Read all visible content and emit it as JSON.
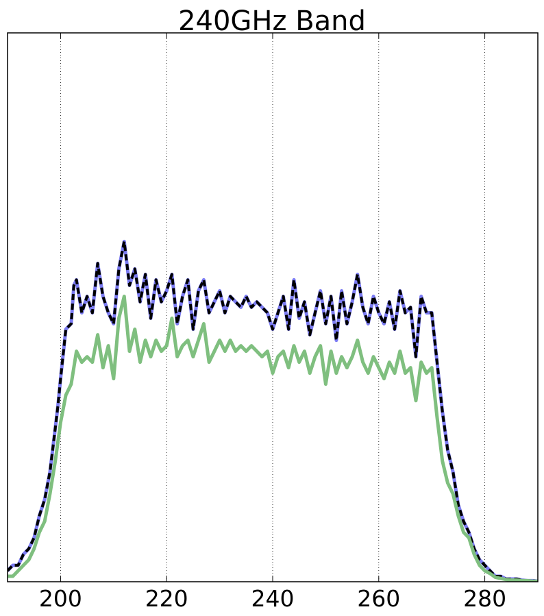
{
  "chart_data": {
    "type": "line",
    "title": "240GHz Band",
    "xlabel": "",
    "ylabel": "",
    "xlim": [
      190,
      290
    ],
    "ylim": [
      0,
      1.0
    ],
    "x_ticks": [
      200,
      220,
      240,
      260,
      280
    ],
    "x_tick_labels": [
      "200",
      "220",
      "240",
      "260",
      "280"
    ],
    "grid": "vertical dotted",
    "legend": "none",
    "series": [
      {
        "color": "#7b7bf2",
        "style": "solid",
        "points": [
          [
            190,
            0.02
          ],
          [
            191,
            0.03
          ],
          [
            192,
            0.03
          ],
          [
            193,
            0.05
          ],
          [
            194,
            0.06
          ],
          [
            195,
            0.08
          ],
          [
            196,
            0.12
          ],
          [
            197,
            0.15
          ],
          [
            198,
            0.2
          ],
          [
            199,
            0.28
          ],
          [
            199.5,
            0.32
          ],
          [
            200,
            0.37
          ],
          [
            201,
            0.46
          ],
          [
            202,
            0.47
          ],
          [
            202.5,
            0.54
          ],
          [
            203,
            0.55
          ],
          [
            204,
            0.49
          ],
          [
            205,
            0.52
          ],
          [
            206,
            0.49
          ],
          [
            207,
            0.58
          ],
          [
            208,
            0.52
          ],
          [
            209,
            0.49
          ],
          [
            210,
            0.47
          ],
          [
            211,
            0.57
          ],
          [
            212,
            0.62
          ],
          [
            213,
            0.54
          ],
          [
            214,
            0.57
          ],
          [
            215,
            0.51
          ],
          [
            216,
            0.56
          ],
          [
            217,
            0.48
          ],
          [
            218,
            0.55
          ],
          [
            219,
            0.51
          ],
          [
            220,
            0.53
          ],
          [
            221,
            0.56
          ],
          [
            222,
            0.47
          ],
          [
            223,
            0.52
          ],
          [
            224,
            0.55
          ],
          [
            225,
            0.46
          ],
          [
            226,
            0.53
          ],
          [
            227,
            0.55
          ],
          [
            228,
            0.49
          ],
          [
            229,
            0.51
          ],
          [
            230,
            0.53
          ],
          [
            231,
            0.49
          ],
          [
            232,
            0.52
          ],
          [
            233,
            0.51
          ],
          [
            234,
            0.5
          ],
          [
            235,
            0.52
          ],
          [
            236,
            0.5
          ],
          [
            237,
            0.51
          ],
          [
            238,
            0.5
          ],
          [
            239,
            0.49
          ],
          [
            240,
            0.46
          ],
          [
            241,
            0.49
          ],
          [
            242,
            0.52
          ],
          [
            243,
            0.46
          ],
          [
            244,
            0.55
          ],
          [
            245,
            0.48
          ],
          [
            246,
            0.51
          ],
          [
            247,
            0.45
          ],
          [
            248,
            0.49
          ],
          [
            249,
            0.53
          ],
          [
            250,
            0.47
          ],
          [
            251,
            0.52
          ],
          [
            252,
            0.44
          ],
          [
            253,
            0.53
          ],
          [
            254,
            0.47
          ],
          [
            255,
            0.51
          ],
          [
            256,
            0.56
          ],
          [
            257,
            0.5
          ],
          [
            258,
            0.47
          ],
          [
            259,
            0.52
          ],
          [
            260,
            0.49
          ],
          [
            261,
            0.47
          ],
          [
            262,
            0.51
          ],
          [
            263,
            0.46
          ],
          [
            264,
            0.53
          ],
          [
            265,
            0.49
          ],
          [
            266,
            0.5
          ],
          [
            267,
            0.41
          ],
          [
            268,
            0.52
          ],
          [
            269,
            0.49
          ],
          [
            270,
            0.49
          ],
          [
            271,
            0.4
          ],
          [
            272,
            0.31
          ],
          [
            273,
            0.24
          ],
          [
            274,
            0.2
          ],
          [
            275,
            0.14
          ],
          [
            276,
            0.11
          ],
          [
            277,
            0.09
          ],
          [
            278,
            0.06
          ],
          [
            279,
            0.04
          ],
          [
            280,
            0.03
          ],
          [
            281,
            0.02
          ],
          [
            282,
            0.01
          ],
          [
            283,
            0.01
          ],
          [
            284,
            0.005
          ],
          [
            285,
            0.005
          ],
          [
            286,
            0.005
          ],
          [
            287,
            0.003
          ],
          [
            288,
            0.002
          ],
          [
            289,
            0.002
          ],
          [
            290,
            0.001
          ]
        ]
      },
      {
        "color": "#000000",
        "style": "dashed",
        "points": [
          [
            190,
            0.02
          ],
          [
            191,
            0.03
          ],
          [
            192,
            0.03
          ],
          [
            193,
            0.05
          ],
          [
            194,
            0.06
          ],
          [
            195,
            0.08
          ],
          [
            196,
            0.12
          ],
          [
            197,
            0.15
          ],
          [
            198,
            0.2
          ],
          [
            199,
            0.28
          ],
          [
            199.5,
            0.32
          ],
          [
            200,
            0.37
          ],
          [
            201,
            0.46
          ],
          [
            202,
            0.47
          ],
          [
            202.5,
            0.54
          ],
          [
            203,
            0.55
          ],
          [
            204,
            0.49
          ],
          [
            205,
            0.52
          ],
          [
            206,
            0.49
          ],
          [
            207,
            0.58
          ],
          [
            208,
            0.52
          ],
          [
            209,
            0.49
          ],
          [
            210,
            0.47
          ],
          [
            211,
            0.57
          ],
          [
            212,
            0.62
          ],
          [
            213,
            0.54
          ],
          [
            214,
            0.57
          ],
          [
            215,
            0.51
          ],
          [
            216,
            0.56
          ],
          [
            217,
            0.48
          ],
          [
            218,
            0.55
          ],
          [
            219,
            0.51
          ],
          [
            220,
            0.53
          ],
          [
            221,
            0.56
          ],
          [
            222,
            0.47
          ],
          [
            223,
            0.52
          ],
          [
            224,
            0.55
          ],
          [
            225,
            0.46
          ],
          [
            226,
            0.53
          ],
          [
            227,
            0.55
          ],
          [
            228,
            0.49
          ],
          [
            229,
            0.51
          ],
          [
            230,
            0.53
          ],
          [
            231,
            0.49
          ],
          [
            232,
            0.52
          ],
          [
            233,
            0.51
          ],
          [
            234,
            0.5
          ],
          [
            235,
            0.52
          ],
          [
            236,
            0.5
          ],
          [
            237,
            0.51
          ],
          [
            238,
            0.5
          ],
          [
            239,
            0.49
          ],
          [
            240,
            0.46
          ],
          [
            241,
            0.49
          ],
          [
            242,
            0.52
          ],
          [
            243,
            0.46
          ],
          [
            244,
            0.55
          ],
          [
            245,
            0.48
          ],
          [
            246,
            0.51
          ],
          [
            247,
            0.45
          ],
          [
            248,
            0.49
          ],
          [
            249,
            0.53
          ],
          [
            250,
            0.47
          ],
          [
            251,
            0.52
          ],
          [
            252,
            0.44
          ],
          [
            253,
            0.53
          ],
          [
            254,
            0.47
          ],
          [
            255,
            0.51
          ],
          [
            256,
            0.56
          ],
          [
            257,
            0.5
          ],
          [
            258,
            0.47
          ],
          [
            259,
            0.52
          ],
          [
            260,
            0.49
          ],
          [
            261,
            0.47
          ],
          [
            262,
            0.51
          ],
          [
            263,
            0.46
          ],
          [
            264,
            0.53
          ],
          [
            265,
            0.49
          ],
          [
            266,
            0.5
          ],
          [
            267,
            0.41
          ],
          [
            268,
            0.52
          ],
          [
            269,
            0.49
          ],
          [
            270,
            0.49
          ],
          [
            271,
            0.4
          ],
          [
            272,
            0.31
          ],
          [
            273,
            0.24
          ],
          [
            274,
            0.2
          ],
          [
            275,
            0.14
          ],
          [
            276,
            0.11
          ],
          [
            277,
            0.09
          ],
          [
            278,
            0.06
          ],
          [
            279,
            0.04
          ],
          [
            280,
            0.03
          ],
          [
            281,
            0.02
          ],
          [
            282,
            0.01
          ],
          [
            283,
            0.01
          ],
          [
            284,
            0.005
          ],
          [
            285,
            0.005
          ],
          [
            286,
            0.005
          ],
          [
            287,
            0.003
          ],
          [
            288,
            0.002
          ],
          [
            289,
            0.002
          ],
          [
            290,
            0.001
          ]
        ]
      },
      {
        "color": "#7fbf7f",
        "style": "solid",
        "points": [
          [
            190,
            0.01
          ],
          [
            191,
            0.01
          ],
          [
            192,
            0.02
          ],
          [
            193,
            0.03
          ],
          [
            194,
            0.04
          ],
          [
            195,
            0.06
          ],
          [
            196,
            0.09
          ],
          [
            197,
            0.11
          ],
          [
            198,
            0.16
          ],
          [
            199,
            0.22
          ],
          [
            200,
            0.29
          ],
          [
            201,
            0.34
          ],
          [
            202,
            0.36
          ],
          [
            203,
            0.42
          ],
          [
            204,
            0.4
          ],
          [
            205,
            0.41
          ],
          [
            206,
            0.4
          ],
          [
            207,
            0.45
          ],
          [
            208,
            0.39
          ],
          [
            209,
            0.43
          ],
          [
            210,
            0.37
          ],
          [
            211,
            0.48
          ],
          [
            212,
            0.52
          ],
          [
            213,
            0.42
          ],
          [
            214,
            0.46
          ],
          [
            215,
            0.4
          ],
          [
            216,
            0.44
          ],
          [
            217,
            0.41
          ],
          [
            218,
            0.44
          ],
          [
            219,
            0.42
          ],
          [
            220,
            0.43
          ],
          [
            221,
            0.48
          ],
          [
            222,
            0.41
          ],
          [
            223,
            0.43
          ],
          [
            224,
            0.44
          ],
          [
            225,
            0.41
          ],
          [
            226,
            0.44
          ],
          [
            227,
            0.47
          ],
          [
            228,
            0.4
          ],
          [
            229,
            0.42
          ],
          [
            230,
            0.44
          ],
          [
            231,
            0.42
          ],
          [
            232,
            0.44
          ],
          [
            233,
            0.42
          ],
          [
            234,
            0.43
          ],
          [
            235,
            0.42
          ],
          [
            236,
            0.43
          ],
          [
            237,
            0.42
          ],
          [
            238,
            0.41
          ],
          [
            239,
            0.42
          ],
          [
            240,
            0.38
          ],
          [
            241,
            0.41
          ],
          [
            242,
            0.42
          ],
          [
            243,
            0.39
          ],
          [
            244,
            0.43
          ],
          [
            245,
            0.4
          ],
          [
            246,
            0.42
          ],
          [
            247,
            0.38
          ],
          [
            248,
            0.41
          ],
          [
            249,
            0.43
          ],
          [
            250,
            0.36
          ],
          [
            251,
            0.42
          ],
          [
            252,
            0.38
          ],
          [
            253,
            0.41
          ],
          [
            254,
            0.39
          ],
          [
            255,
            0.41
          ],
          [
            256,
            0.44
          ],
          [
            257,
            0.4
          ],
          [
            258,
            0.38
          ],
          [
            259,
            0.41
          ],
          [
            260,
            0.39
          ],
          [
            261,
            0.37
          ],
          [
            262,
            0.4
          ],
          [
            263,
            0.38
          ],
          [
            264,
            0.42
          ],
          [
            265,
            0.38
          ],
          [
            266,
            0.39
          ],
          [
            267,
            0.33
          ],
          [
            268,
            0.4
          ],
          [
            269,
            0.38
          ],
          [
            270,
            0.39
          ],
          [
            271,
            0.3
          ],
          [
            272,
            0.22
          ],
          [
            273,
            0.18
          ],
          [
            274,
            0.16
          ],
          [
            275,
            0.12
          ],
          [
            276,
            0.09
          ],
          [
            277,
            0.08
          ],
          [
            278,
            0.05
          ],
          [
            279,
            0.03
          ],
          [
            280,
            0.02
          ],
          [
            281,
            0.015
          ],
          [
            282,
            0.008
          ],
          [
            283,
            0.006
          ],
          [
            284,
            0.004
          ],
          [
            285,
            0.003
          ],
          [
            286,
            0.003
          ],
          [
            287,
            0.002
          ],
          [
            288,
            0.002
          ],
          [
            289,
            0.001
          ],
          [
            290,
            0.001
          ]
        ]
      }
    ]
  }
}
